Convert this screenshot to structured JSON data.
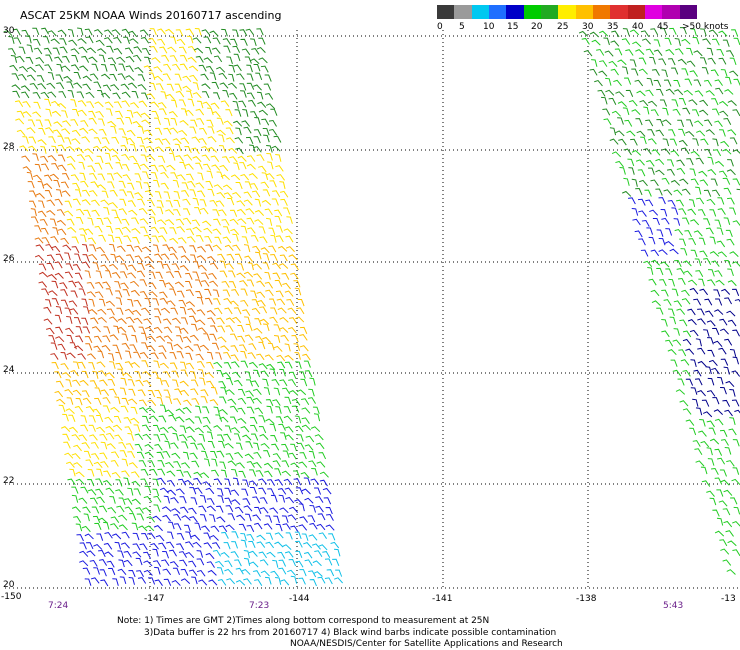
{
  "title": "ASCAT 25KM NOAA Winds 20160717 ascending",
  "legend": {
    "colors": [
      "#3a3a3a",
      "#9a9a9a",
      "#00c8f0",
      "#1f6fff",
      "#0000c8",
      "#00cc00",
      "#22aa22",
      "#ffee00",
      "#ffc000",
      "#f07800",
      "#e03030",
      "#c02020",
      "#e000e0",
      "#b000b0",
      "#5a0080"
    ],
    "labels": [
      "0",
      "5",
      "10",
      "15",
      "20",
      "25",
      "30",
      "35",
      "40",
      "45",
      ">50 knots"
    ]
  },
  "axes": {
    "lat_ticks": [
      "30",
      "28",
      "26",
      "24",
      "22",
      "20"
    ],
    "lon_ticks": [
      "-150",
      "-147",
      "-144",
      "-141",
      "-138",
      "-13"
    ]
  },
  "times": [
    "7:24",
    "7:23",
    "5:43"
  ],
  "notes": [
    "Note: 1) Times are GMT 2)Times along bottom correspond to measurement at 25N",
    "3)Data buffer is 22 hrs from 20160717 4) Black wind barbs indicate possible contamination",
    "NOAA/NESDIS/Center for Satellite Applications and Research"
  ]
}
